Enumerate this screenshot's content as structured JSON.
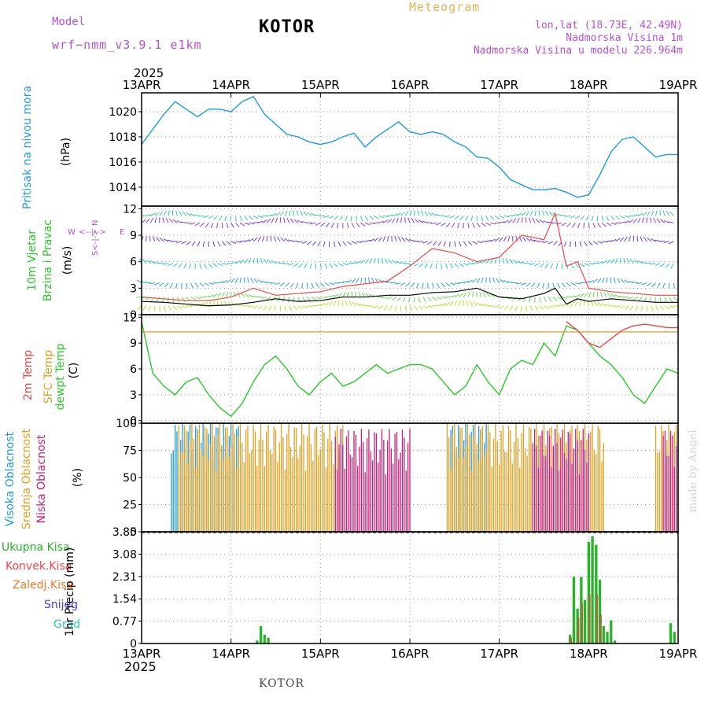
{
  "header": {
    "model_label": "Model",
    "model_name": "wrf−nmm_v3.9.1 e1km",
    "station": "KOTOR",
    "chart_title": "Meteogram",
    "lonlat": "lon,lat (18.73E, 42.49N)",
    "altitude": "Nadmorska Visina 1m",
    "model_altitude": "Nadmorska Visina u modelu 226.964m",
    "year_top": "2025",
    "year_bottom": "2025",
    "footer_station": "KOTOR",
    "credit": "made by Angel"
  },
  "colors": {
    "pressure": "#1e9be0",
    "temp2m": "#f04646",
    "sfc": "#f0a030",
    "dewpt": "#28c828",
    "high_cloud": "#1e9be0",
    "mid_cloud": "#e0a020",
    "low_cloud": "#c81e78",
    "total_precip": "#28b428",
    "conv_precip": "#f04646",
    "frz_precip": "#f07828",
    "snow": "#3c3ce6",
    "grad": "#28c8b4",
    "purple": "#b450d2",
    "gold": "#e6b450"
  },
  "panel_labels": {
    "pressure": {
      "name": "Pritisak na nivou mora",
      "unit": "(hPa)"
    },
    "wind": {
      "name1": "10m Vjetar",
      "name2": "Brzina i Pravac",
      "unit": "(m/s)",
      "compass": "N",
      "compass_w": "W",
      "compass_e": "E",
      "compass_s": "S"
    },
    "temp": {
      "name1": "2m Temp",
      "name2": "SFC Temp",
      "name3": "dewpt Temp",
      "unit": "(C)"
    },
    "cloud": {
      "name1": "Visoka Oblacnost",
      "name2": "Srednja Oblacnost",
      "name3": "Niska Oblacnost",
      "unit": "(%)"
    },
    "precip": {
      "legend": [
        "Ukupna Kisa",
        "Konvek.Kisa",
        "Zaledj.Kisa",
        "Snijeg",
        "Grad"
      ],
      "unit": "1hr Precip (mm)"
    }
  },
  "chart_data": [
    {
      "type": "line",
      "panel": "pressure",
      "ylabel": "(hPa)",
      "x_ticks": [
        "13APR",
        "14APR",
        "15APR",
        "16APR",
        "17APR",
        "18APR",
        "19APR"
      ],
      "y_ticks": [
        1014,
        1016,
        1018,
        1020
      ],
      "ylim": [
        1012.5,
        1021.5
      ],
      "x": [
        0,
        3,
        6,
        9,
        12,
        15,
        18,
        21,
        24,
        27,
        30,
        33,
        36,
        39,
        42,
        45,
        48,
        51,
        54,
        57,
        60,
        63,
        66,
        69,
        72,
        75,
        78,
        81,
        84,
        87,
        90,
        93,
        96,
        99,
        102,
        105,
        108,
        111,
        114,
        117,
        120,
        123,
        126,
        129,
        132,
        135,
        138,
        141,
        144
      ],
      "series": [
        {
          "values": [
            1017.4,
            1018.6,
            1019.8,
            1020.8,
            1020.2,
            1019.6,
            1020.2,
            1020.2,
            1020.0,
            1020.8,
            1021.2,
            1019.8,
            1019.0,
            1018.2,
            1018.0,
            1017.6,
            1017.4,
            1017.6,
            1018.0,
            1018.3,
            1017.2,
            1018.0,
            1018.6,
            1019.2,
            1018.4,
            1018.2,
            1018.4,
            1018.2,
            1017.6,
            1017.2,
            1016.4,
            1016.3,
            1015.6,
            1014.6,
            1014.2,
            1013.8,
            1013.8,
            1013.9,
            1013.6,
            1013.2,
            1013.4,
            1015.0,
            1016.8,
            1017.8,
            1018.0,
            1017.2,
            1016.4,
            1016.6,
            1016.6
          ]
        }
      ]
    },
    {
      "type": "line",
      "panel": "wind",
      "ylabel": "(m/s)",
      "y_ticks": [
        0,
        3,
        6,
        9,
        12
      ],
      "ylim": [
        0,
        12.3
      ],
      "x": [
        0,
        6,
        12,
        18,
        24,
        30,
        36,
        42,
        48,
        54,
        60,
        66,
        72,
        78,
        84,
        90,
        96,
        102,
        108,
        111,
        114,
        117,
        120,
        126,
        132,
        138,
        144
      ],
      "series": [
        {
          "name": "speed",
          "values": [
            1.5,
            1.4,
            1.2,
            1.0,
            1.1,
            1.4,
            1.8,
            1.5,
            1.6,
            2.0,
            2.0,
            2.2,
            2.2,
            2.5,
            2.6,
            3.0,
            2.0,
            1.8,
            2.4,
            3.0,
            1.2,
            1.8,
            1.5,
            1.8,
            1.6,
            1.4,
            1.4
          ]
        },
        {
          "name": "gust",
          "values": [
            2.0,
            1.8,
            1.6,
            1.6,
            2.0,
            3.0,
            2.2,
            2.4,
            2.6,
            3.2,
            3.5,
            3.8,
            5.5,
            7.5,
            7.0,
            6.0,
            6.5,
            9.0,
            8.5,
            11.5,
            5.5,
            6.0,
            3.0,
            2.6,
            2.4,
            2.2,
            2.2
          ]
        }
      ]
    },
    {
      "type": "line",
      "panel": "temperature",
      "ylabel": "(C)",
      "y_ticks": [
        0,
        3,
        6,
        9,
        12
      ],
      "ylim": [
        -0.3,
        12.3
      ],
      "x": [
        0,
        3,
        6,
        9,
        12,
        15,
        18,
        21,
        24,
        27,
        30,
        33,
        36,
        39,
        42,
        45,
        48,
        51,
        54,
        57,
        60,
        63,
        66,
        69,
        72,
        75,
        78,
        81,
        84,
        87,
        90,
        93,
        96,
        99,
        102,
        105,
        108,
        111,
        114,
        117,
        120,
        123,
        126,
        129,
        132,
        135,
        138,
        141,
        144
      ],
      "series": [
        {
          "name": "dewpt",
          "values": [
            11.5,
            5.5,
            4.0,
            3.0,
            4.5,
            5.0,
            3.0,
            1.5,
            0.5,
            2.0,
            4.5,
            6.5,
            7.5,
            6.0,
            4.0,
            3.0,
            4.5,
            5.5,
            4.0,
            4.5,
            5.5,
            6.5,
            5.5,
            6.0,
            6.5,
            6.5,
            6.0,
            4.5,
            3.0,
            4.0,
            6.5,
            4.5,
            3.0,
            6.0,
            7.0,
            6.5,
            9.0,
            7.5,
            11.0,
            10.5,
            9.0,
            7.5,
            6.5,
            5.0,
            3.0,
            2.0,
            4.0,
            6.0,
            5.5
          ]
        },
        {
          "name": "sfc",
          "values": [
            10.3,
            10.3,
            10.3,
            10.3,
            10.3,
            10.3,
            10.3,
            10.3,
            10.3,
            10.3,
            10.3,
            10.3,
            10.3,
            10.3,
            10.3,
            10.3,
            10.3,
            10.3,
            10.3,
            10.3,
            10.3,
            10.3,
            10.3,
            10.3,
            10.3,
            10.3,
            10.3,
            10.3,
            10.3,
            10.3,
            10.3,
            10.3,
            10.3,
            10.3,
            10.3,
            10.3,
            10.3,
            10.3,
            10.3,
            10.3,
            10.3,
            10.3,
            10.3,
            10.3,
            10.3,
            10.3,
            10.3,
            10.3,
            10.3
          ]
        },
        {
          "name": "temp2m",
          "values": [
            null,
            null,
            null,
            null,
            null,
            null,
            null,
            null,
            null,
            null,
            null,
            null,
            null,
            null,
            null,
            null,
            null,
            null,
            null,
            null,
            null,
            null,
            null,
            null,
            null,
            null,
            null,
            null,
            null,
            null,
            null,
            null,
            null,
            null,
            null,
            null,
            null,
            null,
            11.5,
            10.5,
            9.0,
            8.5,
            9.5,
            10.5,
            11.0,
            11.2,
            11.0,
            10.8,
            10.8
          ]
        }
      ]
    },
    {
      "type": "bar",
      "panel": "clouds",
      "ylabel": "(%)",
      "y_ticks": [
        0,
        25,
        50,
        75,
        100
      ],
      "ylim": [
        0,
        100
      ],
      "series": [
        {
          "name": "high",
          "ranges": [
            [
              8,
              26
            ],
            [
              83,
              93
            ]
          ],
          "value": 100
        },
        {
          "name": "mid",
          "ranges": [
            [
              10,
              54
            ],
            [
              82,
              124
            ],
            [
              138,
              144
            ]
          ],
          "value": 100
        },
        {
          "name": "low",
          "ranges": [
            [
              52,
              72
            ],
            [
              105,
              120
            ],
            [
              140,
              144
            ]
          ],
          "value": 95
        }
      ]
    },
    {
      "type": "bar",
      "panel": "precipitation",
      "ylabel": "1hr Precip (mm)",
      "y_ticks": [
        0,
        0.77,
        1.54,
        2.31,
        3.08,
        3.85
      ],
      "ylim": [
        0,
        3.85
      ],
      "series": [
        {
          "name": "total",
          "x": [
            31,
            32,
            33,
            34,
            115,
            116,
            117,
            118,
            119,
            120,
            121,
            122,
            123,
            124,
            125,
            126,
            127,
            142,
            143
          ],
          "values": [
            0.1,
            0.6,
            0.3,
            0.2,
            0.3,
            2.3,
            1.2,
            2.3,
            1.5,
            3.5,
            3.7,
            3.4,
            2.2,
            0.6,
            0.4,
            0.8,
            0.1,
            0.7,
            0.4
          ]
        },
        {
          "name": "convective",
          "x": [
            115,
            117,
            118,
            120,
            122,
            123
          ],
          "values": [
            0.2,
            0.9,
            1.4,
            1.7,
            1.7,
            1.0
          ]
        }
      ]
    }
  ]
}
